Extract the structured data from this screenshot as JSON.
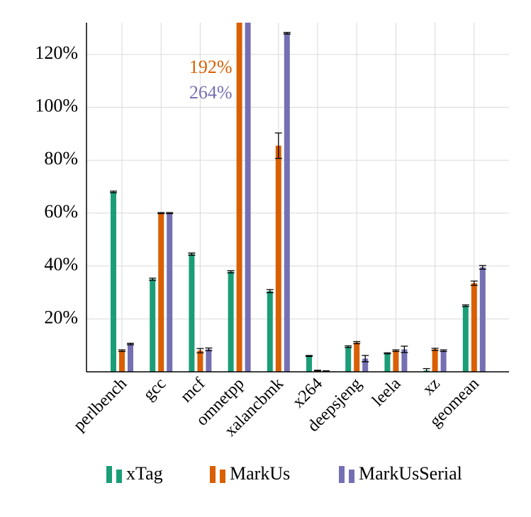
{
  "chart_data": {
    "type": "bar",
    "categories": [
      "perlbench",
      "gcc",
      "mcf",
      "omnetpp",
      "xalancbmk",
      "x264",
      "deepsjeng",
      "leela",
      "xz",
      "geomean"
    ],
    "series": [
      {
        "name": "xTag",
        "color": "#1b9e77",
        "values": [
          68,
          35,
          44.5,
          37.8,
          30.5,
          6,
          9.5,
          7,
          0.5,
          25
        ],
        "errors": [
          0.3,
          0.4,
          0.4,
          0.4,
          0.6,
          0.2,
          0.3,
          0.2,
          0.7,
          0.3
        ]
      },
      {
        "name": "MarkUs",
        "color": "#d95f02",
        "values": [
          8,
          60,
          8,
          192,
          85.5,
          0.5,
          11,
          8,
          8.5,
          33.5
        ],
        "errors": [
          0.3,
          0.2,
          0.8,
          0,
          4.8,
          0.1,
          0.4,
          0.3,
          0.4,
          0.8
        ],
        "value_labels": [
          null,
          null,
          null,
          "192%",
          null,
          null,
          null,
          null,
          null,
          null
        ]
      },
      {
        "name": "MarkUsSerial",
        "color": "#7570b3",
        "values": [
          10.5,
          60,
          8.5,
          264,
          128,
          0.3,
          5,
          8.5,
          8,
          39.5
        ],
        "errors": [
          0.3,
          0.2,
          0.5,
          0,
          0.3,
          0.1,
          1.2,
          1.2,
          0.3,
          0.7
        ],
        "value_labels": [
          null,
          null,
          null,
          "264%",
          null,
          null,
          null,
          null,
          null,
          null
        ]
      }
    ],
    "ylim": [
      0,
      132
    ],
    "yticks": [
      {
        "value": 20,
        "label": "20%"
      },
      {
        "value": 40,
        "label": "40%"
      },
      {
        "value": 60,
        "label": "60%"
      },
      {
        "value": 80,
        "label": "80%"
      },
      {
        "value": 100,
        "label": "100%"
      },
      {
        "value": 120,
        "label": "120%"
      }
    ],
    "grid": true,
    "legend": "bottom"
  }
}
